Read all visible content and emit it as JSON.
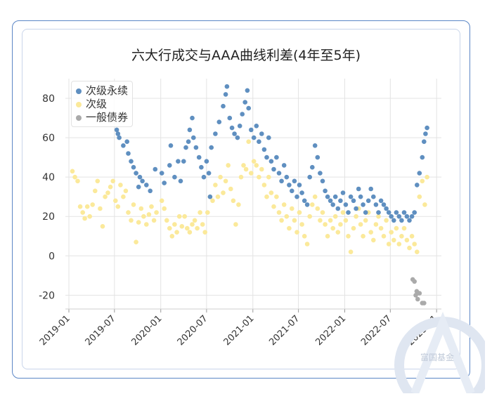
{
  "chart_data": {
    "type": "scatter",
    "title": "六大行成交与AAA曲线利差(4年至5年)",
    "xlabel": "",
    "ylabel": "",
    "ylim": [
      -27,
      90
    ],
    "y_ticks": [
      -20,
      0,
      20,
      40,
      60,
      80
    ],
    "x_ticks": [
      "2019-01",
      "2019-07",
      "2020-01",
      "2020-07",
      "2021-01",
      "2021-07",
      "2022-01",
      "2022-07",
      "2023-01"
    ],
    "x_range": [
      "2018-12-18",
      "2023-01-20"
    ],
    "legend_position": "top-left",
    "series": [
      {
        "name": "次级永续",
        "color": "#5f8fc0",
        "points": [
          [
            "2019-07-10",
            64
          ],
          [
            "2019-07-15",
            62
          ],
          [
            "2019-07-20",
            60
          ],
          [
            "2019-08-05",
            56
          ],
          [
            "2019-08-20",
            58
          ],
          [
            "2019-08-25",
            52
          ],
          [
            "2019-09-05",
            48
          ],
          [
            "2019-09-15",
            45
          ],
          [
            "2019-09-25",
            42
          ],
          [
            "2019-10-05",
            35
          ],
          [
            "2019-10-10",
            40
          ],
          [
            "2019-10-20",
            38
          ],
          [
            "2019-11-05",
            36
          ],
          [
            "2019-11-20",
            33
          ],
          [
            "2019-12-10",
            44
          ],
          [
            "2020-01-05",
            42
          ],
          [
            "2020-01-15",
            37
          ],
          [
            "2020-02-05",
            46
          ],
          [
            "2020-02-10",
            56
          ],
          [
            "2020-02-25",
            40
          ],
          [
            "2020-03-10",
            48
          ],
          [
            "2020-03-20",
            38
          ],
          [
            "2020-04-01",
            48
          ],
          [
            "2020-04-10",
            55
          ],
          [
            "2020-04-20",
            58
          ],
          [
            "2020-04-25",
            64
          ],
          [
            "2020-05-05",
            70
          ],
          [
            "2020-05-10",
            60
          ],
          [
            "2020-05-20",
            55
          ],
          [
            "2020-06-01",
            50
          ],
          [
            "2020-06-10",
            45
          ],
          [
            "2020-06-20",
            40
          ],
          [
            "2020-07-01",
            48
          ],
          [
            "2020-07-10",
            42
          ],
          [
            "2020-07-15",
            30
          ],
          [
            "2020-07-20",
            55
          ],
          [
            "2020-08-05",
            62
          ],
          [
            "2020-08-20",
            68
          ],
          [
            "2020-09-05",
            76
          ],
          [
            "2020-09-15",
            82
          ],
          [
            "2020-09-20",
            86
          ],
          [
            "2020-10-01",
            70
          ],
          [
            "2020-10-10",
            65
          ],
          [
            "2020-10-20",
            62
          ],
          [
            "2020-11-01",
            60
          ],
          [
            "2020-11-10",
            66
          ],
          [
            "2020-11-20",
            72
          ],
          [
            "2020-12-01",
            78
          ],
          [
            "2020-12-10",
            84
          ],
          [
            "2020-12-15",
            75
          ],
          [
            "2020-12-25",
            64
          ],
          [
            "2021-01-05",
            60
          ],
          [
            "2021-01-15",
            66
          ],
          [
            "2021-01-25",
            58
          ],
          [
            "2021-02-05",
            62
          ],
          [
            "2021-02-15",
            54
          ],
          [
            "2021-02-25",
            50
          ],
          [
            "2021-03-05",
            60
          ],
          [
            "2021-03-15",
            48
          ],
          [
            "2021-03-25",
            44
          ],
          [
            "2021-04-05",
            50
          ],
          [
            "2021-04-15",
            42
          ],
          [
            "2021-04-25",
            38
          ],
          [
            "2021-05-05",
            46
          ],
          [
            "2021-05-15",
            40
          ],
          [
            "2021-05-25",
            36
          ],
          [
            "2021-06-05",
            33
          ],
          [
            "2021-06-15",
            38
          ],
          [
            "2021-06-25",
            30
          ],
          [
            "2021-07-05",
            36
          ],
          [
            "2021-07-15",
            32
          ],
          [
            "2021-07-25",
            28
          ],
          [
            "2021-08-05",
            26
          ],
          [
            "2021-08-15",
            40
          ],
          [
            "2021-08-25",
            45
          ],
          [
            "2021-09-05",
            56
          ],
          [
            "2021-09-15",
            50
          ],
          [
            "2021-09-25",
            42
          ],
          [
            "2021-10-05",
            38
          ],
          [
            "2021-10-15",
            33
          ],
          [
            "2021-10-25",
            30
          ],
          [
            "2021-11-05",
            28
          ],
          [
            "2021-11-15",
            26
          ],
          [
            "2021-11-25",
            30
          ],
          [
            "2021-12-05",
            24
          ],
          [
            "2021-12-15",
            28
          ],
          [
            "2021-12-25",
            32
          ],
          [
            "2022-01-05",
            26
          ],
          [
            "2022-01-15",
            22
          ],
          [
            "2022-01-25",
            30
          ],
          [
            "2022-02-05",
            28
          ],
          [
            "2022-02-15",
            24
          ],
          [
            "2022-02-25",
            34
          ],
          [
            "2022-03-05",
            30
          ],
          [
            "2022-03-15",
            26
          ],
          [
            "2022-03-25",
            22
          ],
          [
            "2022-04-05",
            28
          ],
          [
            "2022-04-15",
            34
          ],
          [
            "2022-04-25",
            30
          ],
          [
            "2022-05-05",
            26
          ],
          [
            "2022-05-15",
            22
          ],
          [
            "2022-05-25",
            28
          ],
          [
            "2022-06-05",
            26
          ],
          [
            "2022-06-15",
            24
          ],
          [
            "2022-06-25",
            22
          ],
          [
            "2022-07-05",
            20
          ],
          [
            "2022-07-15",
            18
          ],
          [
            "2022-07-25",
            22
          ],
          [
            "2022-08-05",
            20
          ],
          [
            "2022-08-15",
            18
          ],
          [
            "2022-08-25",
            22
          ],
          [
            "2022-09-05",
            20
          ],
          [
            "2022-09-15",
            18
          ],
          [
            "2022-09-25",
            20
          ],
          [
            "2022-10-05",
            22
          ],
          [
            "2022-10-15",
            36
          ],
          [
            "2022-10-25",
            42
          ],
          [
            "2022-11-05",
            50
          ],
          [
            "2022-11-12",
            58
          ],
          [
            "2022-11-18",
            62
          ],
          [
            "2022-11-24",
            65
          ]
        ]
      },
      {
        "name": "次级",
        "color": "#fbe99a",
        "points": [
          [
            "2019-01-15",
            43
          ],
          [
            "2019-01-25",
            40
          ],
          [
            "2019-02-05",
            38
          ],
          [
            "2019-02-15",
            25
          ],
          [
            "2019-02-25",
            22
          ],
          [
            "2019-03-05",
            19
          ],
          [
            "2019-03-15",
            25
          ],
          [
            "2019-03-25",
            20
          ],
          [
            "2019-04-05",
            26
          ],
          [
            "2019-04-15",
            33
          ],
          [
            "2019-04-25",
            38
          ],
          [
            "2019-05-05",
            24
          ],
          [
            "2019-05-15",
            15
          ],
          [
            "2019-05-25",
            30
          ],
          [
            "2019-06-05",
            32
          ],
          [
            "2019-06-15",
            35
          ],
          [
            "2019-06-25",
            38
          ],
          [
            "2019-07-05",
            28
          ],
          [
            "2019-07-15",
            25
          ],
          [
            "2019-07-25",
            36
          ],
          [
            "2019-08-05",
            30
          ],
          [
            "2019-08-15",
            33
          ],
          [
            "2019-08-25",
            22
          ],
          [
            "2019-09-05",
            18
          ],
          [
            "2019-09-15",
            26
          ],
          [
            "2019-09-25",
            7
          ],
          [
            "2019-10-05",
            17
          ],
          [
            "2019-10-15",
            24
          ],
          [
            "2019-10-25",
            20
          ],
          [
            "2019-11-05",
            16
          ],
          [
            "2019-11-15",
            21
          ],
          [
            "2019-11-25",
            25
          ],
          [
            "2019-12-05",
            18
          ],
          [
            "2019-12-15",
            22
          ],
          [
            "2020-01-05",
            28
          ],
          [
            "2020-01-15",
            24
          ],
          [
            "2020-01-25",
            18
          ],
          [
            "2020-02-05",
            14
          ],
          [
            "2020-02-15",
            10
          ],
          [
            "2020-02-25",
            16
          ],
          [
            "2020-03-05",
            12
          ],
          [
            "2020-03-15",
            20
          ],
          [
            "2020-03-25",
            15
          ],
          [
            "2020-04-05",
            20
          ],
          [
            "2020-04-15",
            14
          ],
          [
            "2020-04-25",
            12
          ],
          [
            "2020-05-05",
            16
          ],
          [
            "2020-05-15",
            18
          ],
          [
            "2020-05-25",
            14
          ],
          [
            "2020-06-05",
            22
          ],
          [
            "2020-06-15",
            16
          ],
          [
            "2020-06-25",
            12
          ],
          [
            "2020-07-05",
            22
          ],
          [
            "2020-07-15",
            30
          ],
          [
            "2020-07-25",
            28
          ],
          [
            "2020-08-05",
            36
          ],
          [
            "2020-08-15",
            30
          ],
          [
            "2020-08-25",
            40
          ],
          [
            "2020-09-05",
            32
          ],
          [
            "2020-09-15",
            38
          ],
          [
            "2020-09-25",
            46
          ],
          [
            "2020-10-05",
            34
          ],
          [
            "2020-10-15",
            28
          ],
          [
            "2020-10-25",
            16
          ],
          [
            "2020-11-05",
            26
          ],
          [
            "2020-11-15",
            40
          ],
          [
            "2020-11-25",
            46
          ],
          [
            "2020-12-05",
            44
          ],
          [
            "2020-12-15",
            58
          ],
          [
            "2020-12-25",
            42
          ],
          [
            "2021-01-05",
            48
          ],
          [
            "2021-01-15",
            46
          ],
          [
            "2021-01-25",
            40
          ],
          [
            "2021-02-05",
            44
          ],
          [
            "2021-02-15",
            36
          ],
          [
            "2021-02-25",
            30
          ],
          [
            "2021-03-05",
            40
          ],
          [
            "2021-03-15",
            32
          ],
          [
            "2021-03-25",
            25
          ],
          [
            "2021-04-05",
            30
          ],
          [
            "2021-04-15",
            22
          ],
          [
            "2021-04-25",
            18
          ],
          [
            "2021-05-05",
            26
          ],
          [
            "2021-05-15",
            20
          ],
          [
            "2021-05-25",
            14
          ],
          [
            "2021-06-05",
            24
          ],
          [
            "2021-06-15",
            18
          ],
          [
            "2021-06-25",
            12
          ],
          [
            "2021-07-05",
            22
          ],
          [
            "2021-07-15",
            16
          ],
          [
            "2021-07-25",
            10
          ],
          [
            "2021-08-05",
            6
          ],
          [
            "2021-08-15",
            20
          ],
          [
            "2021-08-25",
            26
          ],
          [
            "2021-09-05",
            30
          ],
          [
            "2021-09-15",
            24
          ],
          [
            "2021-09-25",
            18
          ],
          [
            "2021-10-05",
            22
          ],
          [
            "2021-10-15",
            16
          ],
          [
            "2021-10-25",
            10
          ],
          [
            "2021-11-05",
            18
          ],
          [
            "2021-11-15",
            14
          ],
          [
            "2021-11-25",
            20
          ],
          [
            "2021-12-05",
            12
          ],
          [
            "2021-12-15",
            16
          ],
          [
            "2021-12-25",
            22
          ],
          [
            "2022-01-05",
            18
          ],
          [
            "2022-01-15",
            10
          ],
          [
            "2022-01-25",
            2
          ],
          [
            "2022-02-05",
            14
          ],
          [
            "2022-02-15",
            20
          ],
          [
            "2022-02-25",
            24
          ],
          [
            "2022-03-05",
            16
          ],
          [
            "2022-03-15",
            10
          ],
          [
            "2022-03-25",
            18
          ],
          [
            "2022-04-05",
            22
          ],
          [
            "2022-04-15",
            12
          ],
          [
            "2022-04-25",
            8
          ],
          [
            "2022-05-05",
            16
          ],
          [
            "2022-05-15",
            20
          ],
          [
            "2022-05-25",
            14
          ],
          [
            "2022-06-05",
            10
          ],
          [
            "2022-06-15",
            18
          ],
          [
            "2022-06-25",
            6
          ],
          [
            "2022-07-05",
            12
          ],
          [
            "2022-07-15",
            8
          ],
          [
            "2022-07-25",
            14
          ],
          [
            "2022-08-05",
            6
          ],
          [
            "2022-08-15",
            10
          ],
          [
            "2022-08-25",
            14
          ],
          [
            "2022-09-05",
            8
          ],
          [
            "2022-09-15",
            4
          ],
          [
            "2022-09-25",
            10
          ],
          [
            "2022-10-05",
            6
          ],
          [
            "2022-10-15",
            2
          ],
          [
            "2022-10-25",
            30
          ],
          [
            "2022-11-05",
            38
          ],
          [
            "2022-11-15",
            26
          ],
          [
            "2022-11-24",
            40
          ]
        ]
      },
      {
        "name": "一般债券",
        "color": "#aaaaaa",
        "points": [
          [
            "2022-09-28",
            -12
          ],
          [
            "2022-10-05",
            -13
          ],
          [
            "2022-10-10",
            -20
          ],
          [
            "2022-10-14",
            -18
          ],
          [
            "2022-10-18",
            -22
          ],
          [
            "2022-10-25",
            -19
          ],
          [
            "2022-11-05",
            -24
          ],
          [
            "2022-11-12",
            -24
          ]
        ]
      }
    ]
  },
  "watermark": {
    "text": "富国基金"
  }
}
